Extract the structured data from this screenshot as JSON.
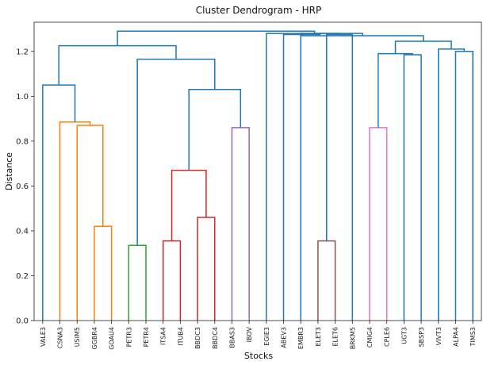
{
  "chart_data": {
    "type": "dendrogram",
    "title": "Cluster Dendrogram - HRP",
    "xlabel": "Stocks",
    "ylabel": "Distance",
    "ylim": [
      0,
      1.33
    ],
    "yticks": [
      "0.0",
      "0.2",
      "0.4",
      "0.6",
      "0.8",
      "1.0",
      "1.2"
    ],
    "ytick_values": [
      0.0,
      0.2,
      0.4,
      0.6,
      0.8,
      1.0,
      1.2
    ],
    "leaves": [
      "VALE3",
      "CSNA3",
      "USIM5",
      "GGBR4",
      "GOAU4",
      "PETR3",
      "PETR4",
      "ITSA4",
      "ITUB4",
      "BBDC3",
      "BBDC4",
      "BBAS3",
      "IBOV",
      "EGIE3",
      "ABEV3",
      "EMBR3",
      "ELET3",
      "ELET6",
      "BRKM5",
      "CMIG4",
      "CPLE6",
      "UGT3",
      "SBSP3",
      "VIVT3",
      "ALPA4",
      "TIMS3"
    ],
    "colors": {
      "above": "#1f77b4",
      "orange": "#ff7f0e",
      "green": "#2ca02c",
      "red": "#d62728",
      "purple": "#9467bd",
      "brown": "#8c564b",
      "pink": "#e377c2"
    },
    "merges": [
      {
        "l": "GGBR4",
        "r": "GOAU4",
        "h": 0.42,
        "color": "orange"
      },
      {
        "l": "USIM5",
        "r": "GGBR4+GOAU4",
        "h": 0.87,
        "color": "orange"
      },
      {
        "l": "CSNA3",
        "r": "USIM5+GGBR4+GOAU4",
        "h": 0.885,
        "color": "orange"
      },
      {
        "l": "VALE3",
        "r": "CSNA3...GOAU4",
        "h": 1.05,
        "color": "above"
      },
      {
        "l": "PETR3",
        "r": "PETR4",
        "h": 0.335,
        "color": "green"
      },
      {
        "l": "ITSA4",
        "r": "ITUB4",
        "h": 0.355,
        "color": "red"
      },
      {
        "l": "BBDC3",
        "r": "BBDC4",
        "h": 0.46,
        "color": "red"
      },
      {
        "l": "ITSA4+ITUB4",
        "r": "BBDC3+BBDC4",
        "h": 0.67,
        "color": "red"
      },
      {
        "l": "BBAS3",
        "r": "IBOV",
        "h": 0.86,
        "color": "purple"
      },
      {
        "l": "banks",
        "r": "BBAS3+IBOV",
        "h": 1.03,
        "color": "above"
      },
      {
        "l": "PETR3+PETR4",
        "r": "banks+BBAS3+IBOV",
        "h": 1.165,
        "color": "above"
      },
      {
        "l": "VALE3...GOAU4",
        "r": "PETR3...IBOV",
        "h": 1.225,
        "color": "above"
      },
      {
        "l": "ELET3",
        "r": "ELET6",
        "h": 0.355,
        "color": "brown"
      },
      {
        "l": "ELET3+ELET6",
        "r": "BRKM5",
        "h": 1.275,
        "color": "above"
      },
      {
        "l": "EMBR3",
        "r": "ELET3+ELET6+BRKM5",
        "h": 1.28,
        "color": "above"
      },
      {
        "l": "ABEV3",
        "r": "EMBR3...BRKM5",
        "h": 1.275,
        "color": "above"
      },
      {
        "l": "CMIG4",
        "r": "CPLE6",
        "h": 0.86,
        "color": "pink"
      },
      {
        "l": "UGT3",
        "r": "SBSP3",
        "h": 1.185,
        "color": "above"
      },
      {
        "l": "CMIG4+CPLE6",
        "r": "UGT3+SBSP3",
        "h": 1.19,
        "color": "above"
      },
      {
        "l": "ALPA4",
        "r": "TIMS3",
        "h": 1.2,
        "color": "above"
      },
      {
        "l": "VIVT3",
        "r": "ALPA4+TIMS3",
        "h": 1.21,
        "color": "above"
      },
      {
        "l": "CMIG4...SBSP3",
        "r": "VIVT3...TIMS3",
        "h": 1.245,
        "color": "above"
      },
      {
        "l": "ABEV3...BRKM5",
        "r": "CMIG4...TIMS3",
        "h": 1.27,
        "color": "above"
      },
      {
        "l": "EGIE3",
        "r": "ABEV3...TIMS3",
        "h": 1.28,
        "color": "above"
      },
      {
        "l": "VALE3...IBOV",
        "r": "EGIE3...TIMS3",
        "h": 1.29,
        "color": "above"
      }
    ]
  }
}
